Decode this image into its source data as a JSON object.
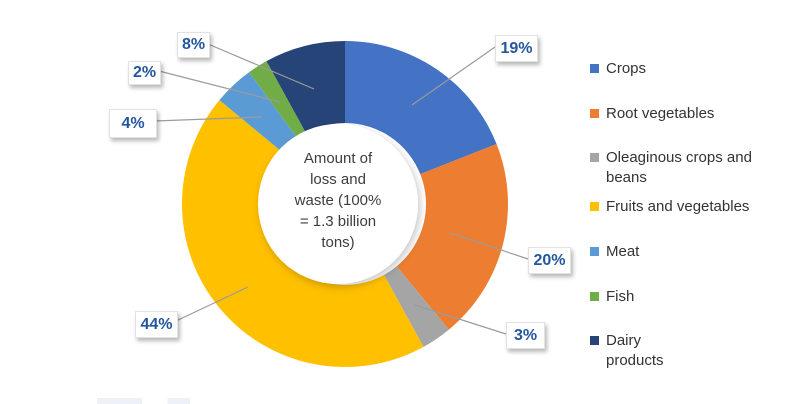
{
  "figure": {
    "center_label": "Amount of loss and waste (100% = 1.3 billion tons)",
    "center_label_lines": [
      "Amount of",
      "loss and",
      "waste (100%",
      "= 1.3 billion",
      "tons)"
    ],
    "callout_text_color": "#24569D",
    "leader_line_color": "#9b9b9b"
  },
  "chart_data": {
    "type": "pie",
    "subtype": "donut",
    "title": "Amount of loss and waste (100% = 1.3 billion tons)",
    "unit": "%",
    "start_angle_deg": 0,
    "direction": "clockwise",
    "legend_position": "right",
    "slices": [
      {
        "label": "Crops",
        "value": 19,
        "pct_label": "19%",
        "color": "#4472C4"
      },
      {
        "label": "Root vegetables",
        "value": 20,
        "pct_label": "20%",
        "color": "#ED7D31"
      },
      {
        "label": "Oleaginous crops and beans",
        "value": 3,
        "pct_label": "3%",
        "color": "#A5A5A5"
      },
      {
        "label": "Fruits and vegetables",
        "value": 44,
        "pct_label": "44%",
        "color": "#FFC000"
      },
      {
        "label": "Meat",
        "value": 4,
        "pct_label": "4%",
        "color": "#5B9BD5"
      },
      {
        "label": "Fish",
        "value": 2,
        "pct_label": "2%",
        "color": "#70AD47"
      },
      {
        "label": "Dairy products",
        "value": 8,
        "pct_label": "8%",
        "color": "#264478"
      }
    ],
    "legend": [
      {
        "key": "crops",
        "label_lines": [
          "Crops"
        ],
        "color": "#4472C4"
      },
      {
        "key": "root-vegetables",
        "label_lines": [
          "Root vegetables"
        ],
        "color": "#ED7D31"
      },
      {
        "key": "oleaginous-crops-and-beans",
        "label_lines": [
          "Oleaginous crops and",
          "beans"
        ],
        "color": "#A5A5A5"
      },
      {
        "key": "fruits-and-vegetables",
        "label_lines": [
          "Fruits and vegetables"
        ],
        "color": "#FFC000"
      },
      {
        "key": "meat",
        "label_lines": [
          "Meat"
        ],
        "color": "#5B9BD5"
      },
      {
        "key": "fish",
        "label_lines": [
          "Fish"
        ],
        "color": "#70AD47"
      },
      {
        "key": "dairy-products",
        "label_lines": [
          "Dairy",
          "products"
        ],
        "color": "#264478"
      }
    ]
  }
}
